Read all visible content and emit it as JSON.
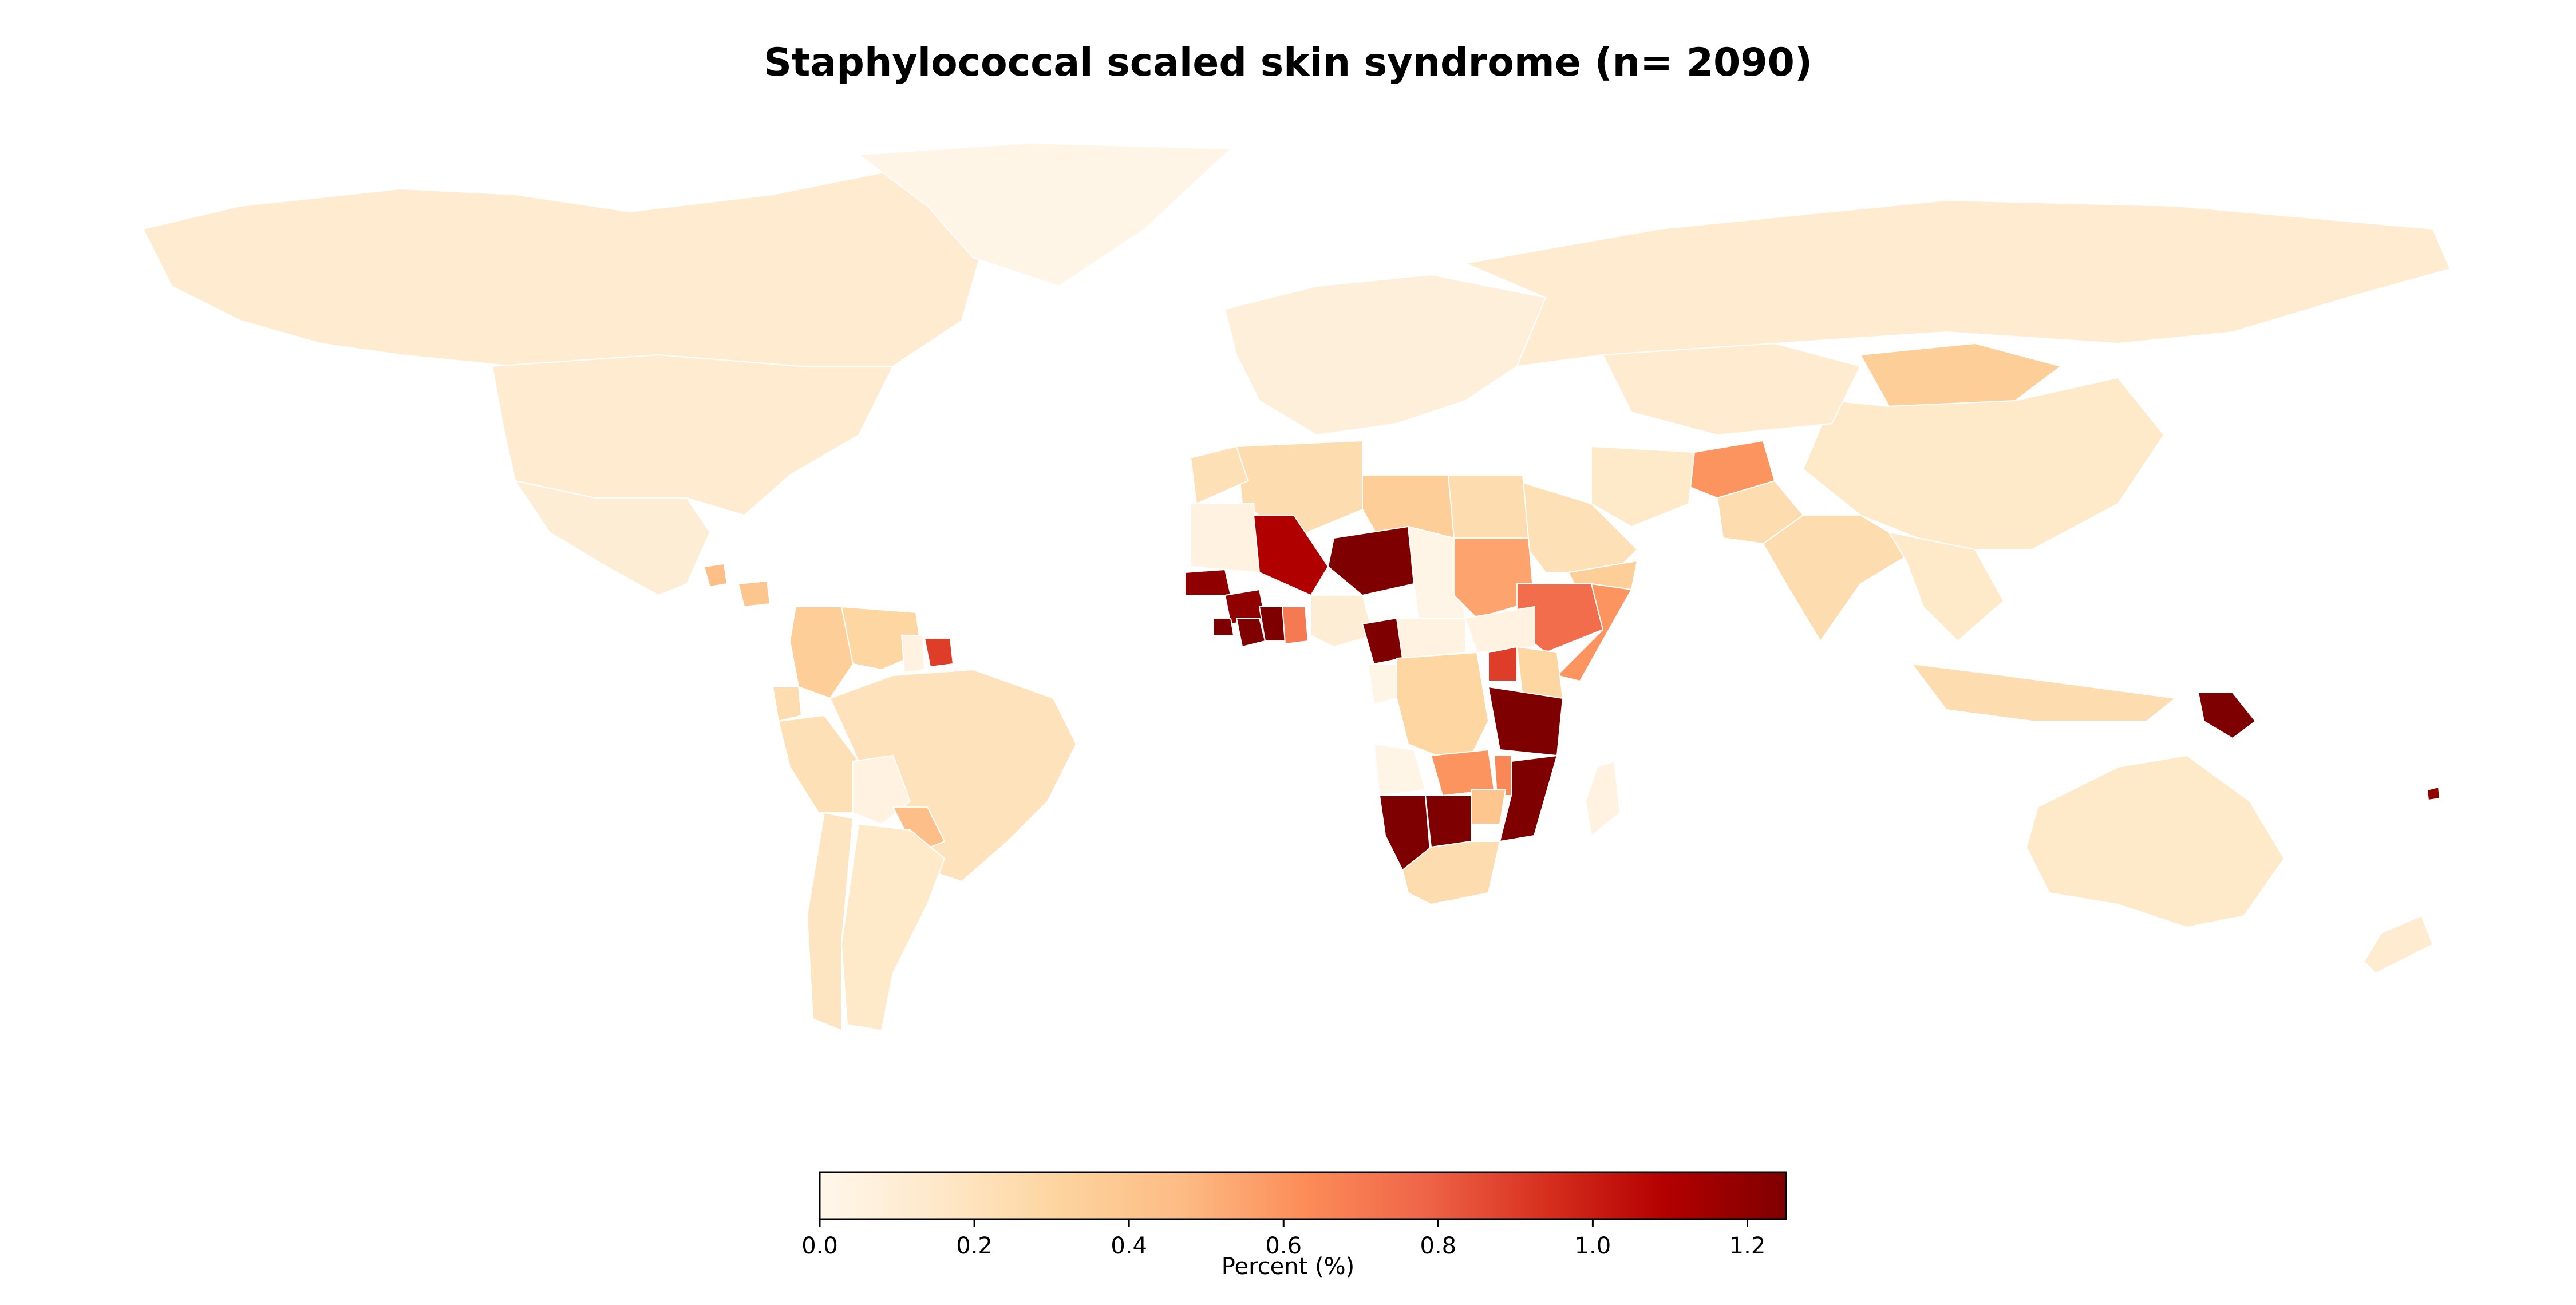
{
  "title": "Staphylococcal scaled skin syndrome (n= 2090)",
  "colorbar": {
    "label": "Percent (%)",
    "min": 0.0,
    "max": 1.25,
    "ticks": [
      "0.0",
      "0.2",
      "0.4",
      "0.6",
      "0.8",
      "1.0",
      "1.2"
    ],
    "tick_values": [
      0.0,
      0.2,
      0.4,
      0.6,
      0.8,
      1.0,
      1.2
    ],
    "colormap": "OrRd",
    "stops": [
      "#fff7ec",
      "#fee8c8",
      "#fdd49e",
      "#fdbb84",
      "#fc8d59",
      "#ef6548",
      "#d7301f",
      "#b30000",
      "#7f0000"
    ]
  },
  "chart_data": {
    "type": "choropleth",
    "title": "Staphylococcal scaled skin syndrome (n= 2090)",
    "legend_label": "Percent (%)",
    "value_range": [
      0.0,
      1.25
    ],
    "regions": [
      {
        "name": "Canada",
        "value": 0.12
      },
      {
        "name": "USA",
        "value": 0.12
      },
      {
        "name": "Greenland",
        "value": 0.02
      },
      {
        "name": "Mexico",
        "value": 0.1
      },
      {
        "name": "Guatemala",
        "value": 0.45
      },
      {
        "name": "Honduras",
        "value": 0.4
      },
      {
        "name": "Colombia",
        "value": 0.35
      },
      {
        "name": "Venezuela",
        "value": 0.3
      },
      {
        "name": "Ecuador",
        "value": 0.25
      },
      {
        "name": "Peru",
        "value": 0.22
      },
      {
        "name": "Suriname",
        "value": 0.9
      },
      {
        "name": "Guyana",
        "value": 0.05
      },
      {
        "name": "Brazil",
        "value": 0.2
      },
      {
        "name": "Bolivia",
        "value": 0.05
      },
      {
        "name": "Paraguay",
        "value": 0.45
      },
      {
        "name": "Argentina",
        "value": 0.15
      },
      {
        "name": "Chile",
        "value": 0.18
      },
      {
        "name": "Russia",
        "value": 0.12
      },
      {
        "name": "Europe",
        "value": 0.08
      },
      {
        "name": "Mongolia",
        "value": 0.35
      },
      {
        "name": "China",
        "value": 0.15
      },
      {
        "name": "Kazakhstan",
        "value": 0.12
      },
      {
        "name": "Afghanistan",
        "value": 0.6
      },
      {
        "name": "India",
        "value": 0.25
      },
      {
        "name": "Pakistan",
        "value": 0.25
      },
      {
        "name": "Iran",
        "value": 0.15
      },
      {
        "name": "Saudi Arabia",
        "value": 0.22
      },
      {
        "name": "Yemen",
        "value": 0.35
      },
      {
        "name": "Southeast Asia",
        "value": 0.15
      },
      {
        "name": "Indonesia",
        "value": 0.25
      },
      {
        "name": "Papua New Guinea",
        "value": 1.25
      },
      {
        "name": "Australia",
        "value": 0.15
      },
      {
        "name": "New Zealand",
        "value": 0.12
      },
      {
        "name": "Algeria",
        "value": 0.25
      },
      {
        "name": "Morocco",
        "value": 0.22
      },
      {
        "name": "Libya",
        "value": 0.35
      },
      {
        "name": "Egypt",
        "value": 0.25
      },
      {
        "name": "Mauritania",
        "value": 0.05
      },
      {
        "name": "Mali",
        "value": 1.1
      },
      {
        "name": "Niger",
        "value": 1.25
      },
      {
        "name": "Chad",
        "value": 0.02
      },
      {
        "name": "Sudan",
        "value": 0.55
      },
      {
        "name": "Senegal",
        "value": 1.2
      },
      {
        "name": "Guinea",
        "value": 1.2
      },
      {
        "name": "Sierra Leone",
        "value": 1.25
      },
      {
        "name": "Liberia",
        "value": 1.25
      },
      {
        "name": "Cote d'Ivoire",
        "value": 1.25
      },
      {
        "name": "Ghana",
        "value": 0.7
      },
      {
        "name": "Nigeria",
        "value": 0.1
      },
      {
        "name": "Cameroon",
        "value": 1.25
      },
      {
        "name": "Central African Republic",
        "value": 0.05
      },
      {
        "name": "Ethiopia",
        "value": 0.75
      },
      {
        "name": "Somalia",
        "value": 0.6
      },
      {
        "name": "South Sudan",
        "value": 0.05
      },
      {
        "name": "Gabon",
        "value": 0.02
      },
      {
        "name": "DR Congo",
        "value": 0.3
      },
      {
        "name": "Uganda",
        "value": 0.9
      },
      {
        "name": "Kenya",
        "value": 0.3
      },
      {
        "name": "Tanzania",
        "value": 1.25
      },
      {
        "name": "Angola",
        "value": 0.02
      },
      {
        "name": "Zambia",
        "value": 0.6
      },
      {
        "name": "Malawi",
        "value": 0.65
      },
      {
        "name": "Mozambique",
        "value": 1.25
      },
      {
        "name": "Namibia",
        "value": 1.25
      },
      {
        "name": "Botswana",
        "value": 1.25
      },
      {
        "name": "Zimbabwe",
        "value": 0.4
      },
      {
        "name": "South Africa",
        "value": 0.25
      },
      {
        "name": "Madagascar",
        "value": 0.05
      },
      {
        "name": "Fiji",
        "value": 1.2
      }
    ]
  }
}
